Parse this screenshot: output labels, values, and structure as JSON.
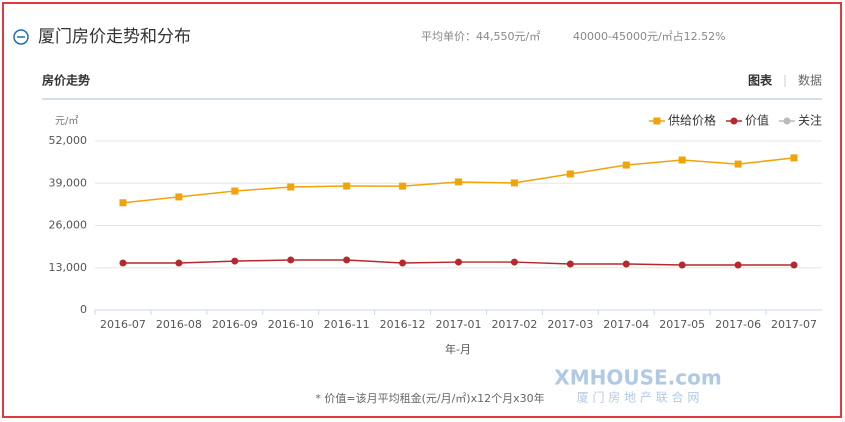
{
  "page": {
    "title": "厦门房价走势和分布",
    "avg_price": "平均单价：44,550元/㎡",
    "share": "40000-45000元/㎡占12.52%",
    "section": "房价走势",
    "tab_chart": "图表",
    "tab_data": "数据",
    "footnote": "* 价值=该月平均租金(元/月/㎡)x12个月x30年",
    "watermark": "XMHOUSE.com",
    "watermark_sub": "厦 门 房 地 产 联 合 网"
  },
  "chart_data": {
    "type": "line",
    "y_unit": "元/㎡",
    "x_label": "年-月",
    "categories": [
      "2016-07",
      "2016-08",
      "2016-09",
      "2016-10",
      "2016-11",
      "2016-12",
      "2017-01",
      "2017-02",
      "2017-03",
      "2017-04",
      "2017-05",
      "2017-06",
      "2017-07"
    ],
    "series": [
      {
        "name": "供给价格",
        "color": "#f0a30a",
        "marker": "square",
        "values": [
          33000,
          34800,
          36600,
          37850,
          38150,
          38100,
          39400,
          39100,
          41850,
          44600,
          46150,
          44900,
          46800
        ]
      },
      {
        "name": "价值",
        "color": "#b7282e",
        "marker": "circle",
        "values": [
          14450,
          14450,
          15050,
          15400,
          15400,
          14450,
          14750,
          14750,
          14150,
          14150,
          13850,
          13850,
          13850
        ]
      },
      {
        "name": "关注",
        "color": "#bbbbbb",
        "marker": "circle",
        "values": [
          null,
          null,
          null,
          null,
          null,
          null,
          null,
          null,
          null,
          null,
          null,
          null,
          null
        ]
      }
    ],
    "ylim": [
      0,
      52000
    ],
    "yticks": [
      0,
      {
        "value": 13000,
        "label": "13,000"
      },
      {
        "value": 26000,
        "label": "26,000"
      },
      {
        "value": 39000,
        "label": "39,000"
      },
      {
        "value": 52000,
        "label": "52,000"
      }
    ],
    "grid": true,
    "legend": "top-right"
  }
}
